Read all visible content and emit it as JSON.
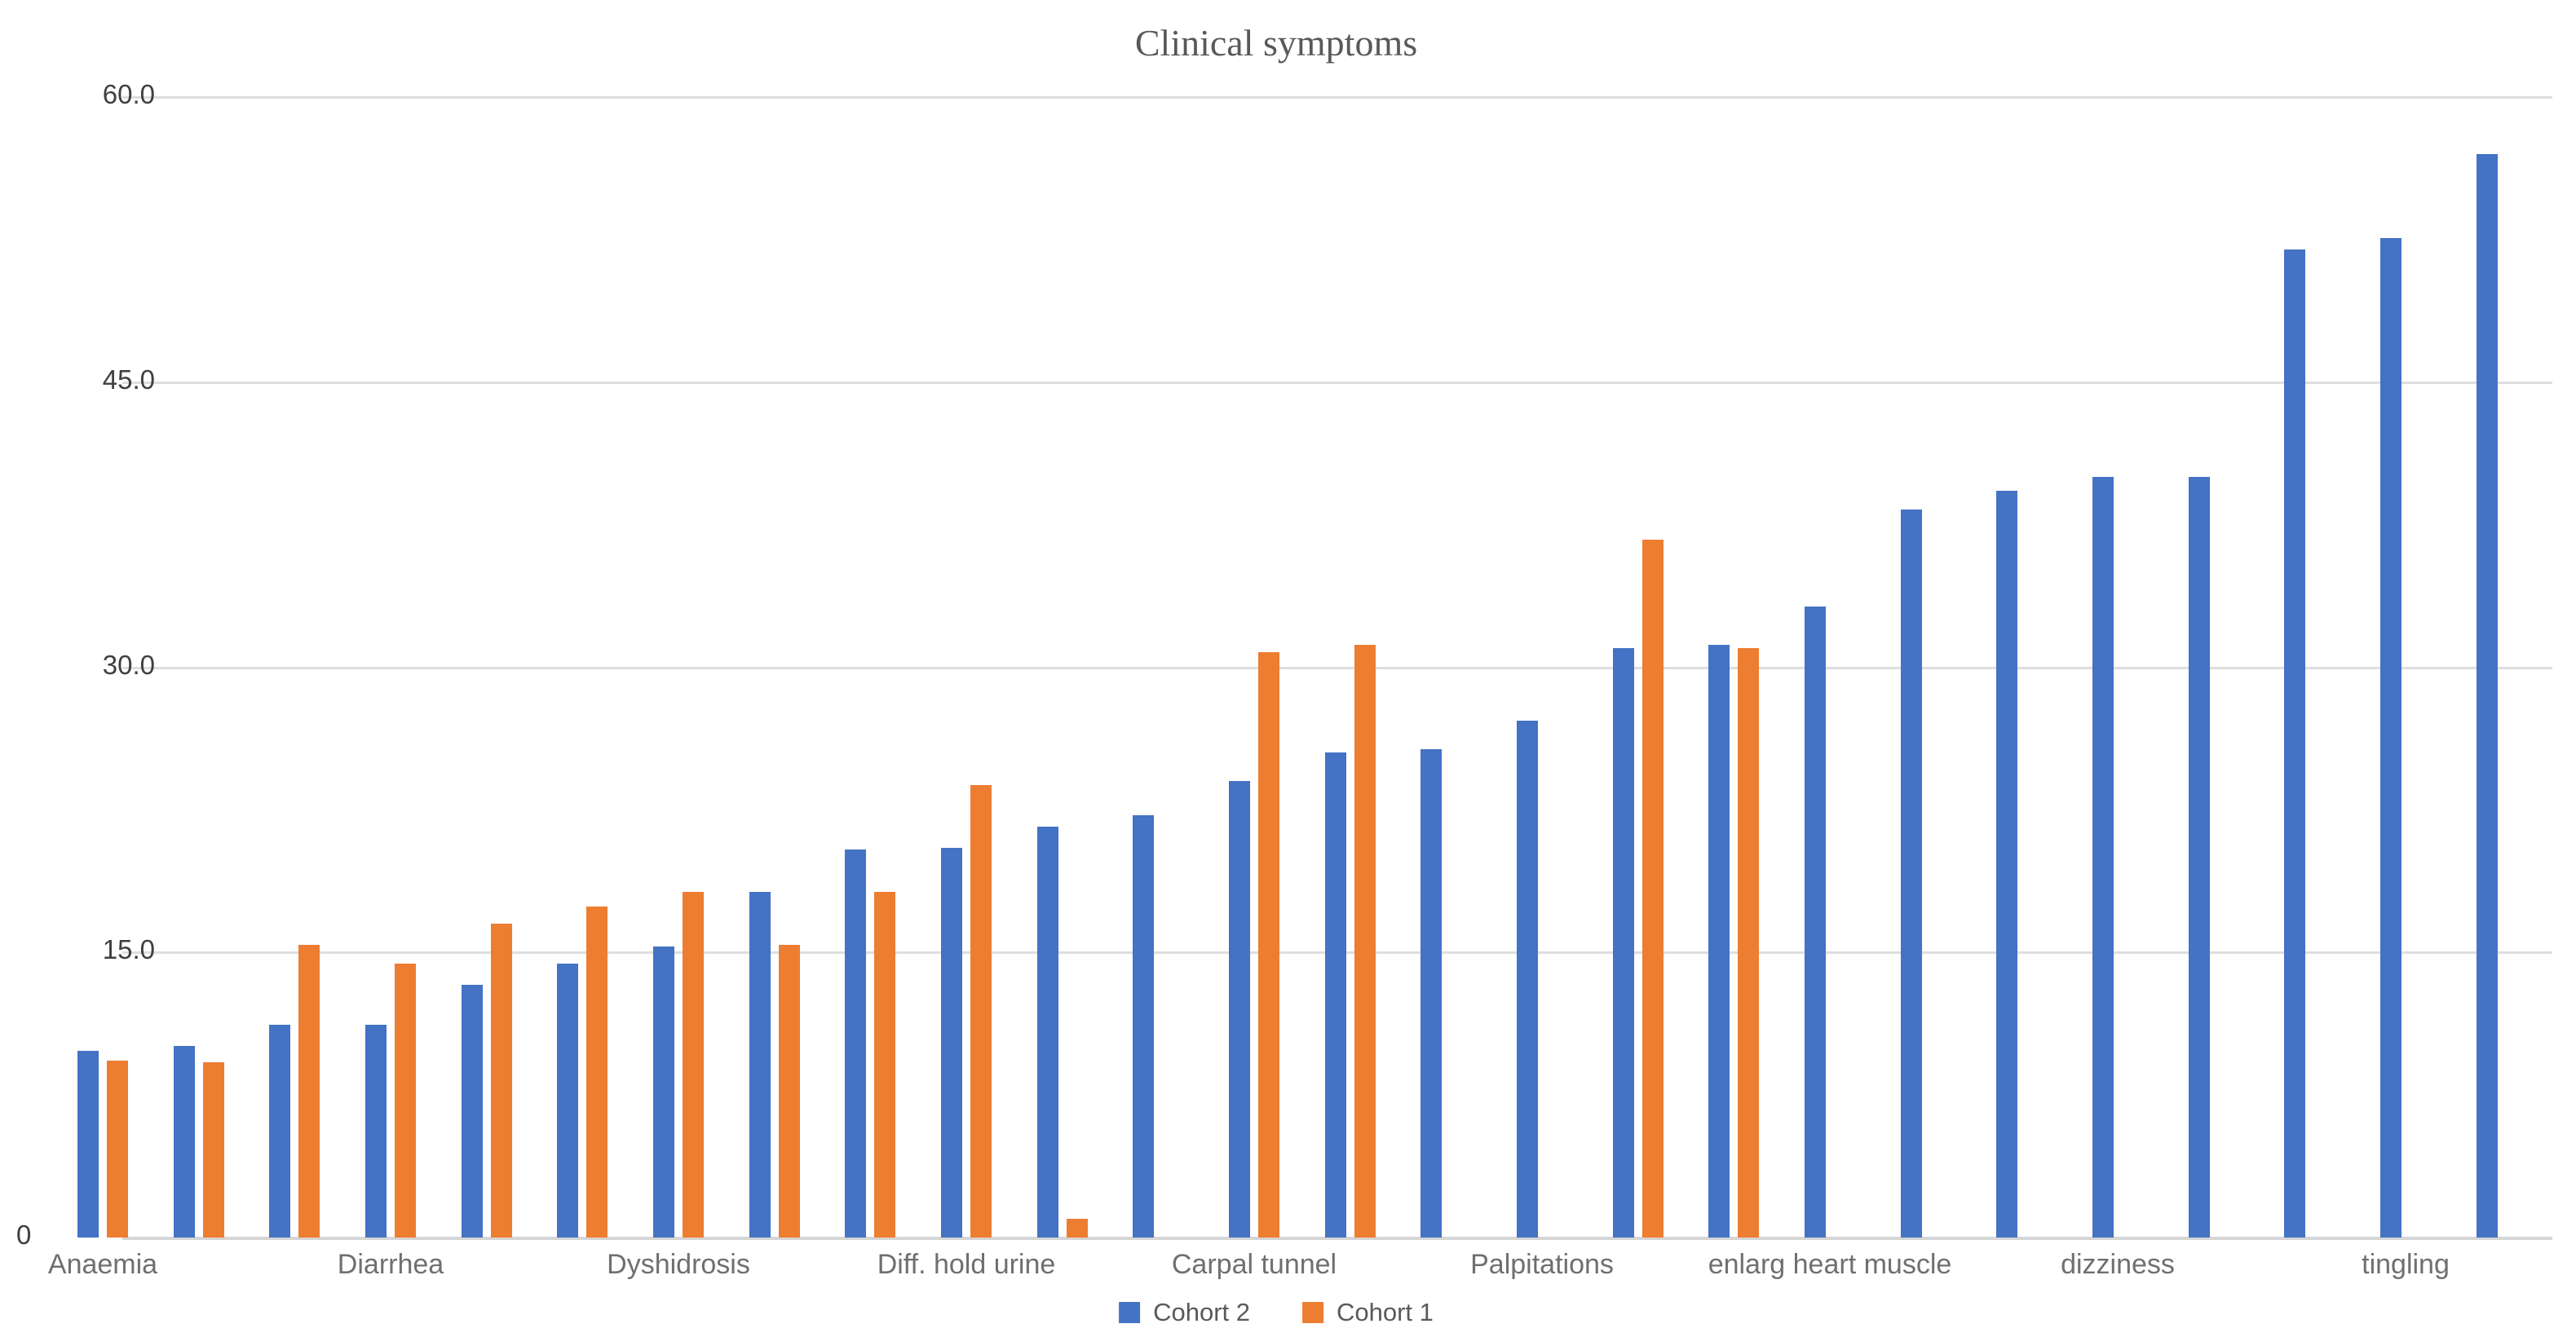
{
  "chart_data": {
    "type": "bar",
    "title": "Clinical symptoms",
    "xlabel": "",
    "ylabel": "",
    "ylim": [
      0,
      60
    ],
    "grid": true,
    "legend_position": "bottom-center",
    "y_axis_ticks": [
      {
        "value": 0,
        "label": "0"
      },
      {
        "value": 15,
        "label": "15.0"
      },
      {
        "value": 30,
        "label": "30.0"
      },
      {
        "value": 45,
        "label": "45.0"
      },
      {
        "value": 60,
        "label": "60.0"
      }
    ],
    "n_pairs": 26,
    "series": [
      {
        "name": "Cohort 2",
        "color": "#4472C4",
        "values": [
          9.8,
          10.1,
          11.2,
          11.2,
          13.3,
          14.4,
          15.3,
          18.2,
          20.4,
          20.5,
          21.6,
          22.2,
          24.0,
          25.5,
          25.7,
          27.2,
          31.0,
          31.2,
          33.2,
          38.3,
          39.3,
          40.0,
          40.0,
          52.0,
          52.6,
          57.0
        ]
      },
      {
        "name": "Cohort 1",
        "color": "#ED7D31",
        "values": [
          9.3,
          9.2,
          15.4,
          14.4,
          16.5,
          17.4,
          18.2,
          15.4,
          18.2,
          23.8,
          1.0,
          null,
          30.8,
          31.2,
          null,
          null,
          36.7,
          31.0,
          null,
          null,
          null,
          null,
          null,
          null,
          null,
          null
        ]
      }
    ],
    "category_labels": [
      {
        "pair_index": 0,
        "label": "Anaemia"
      },
      {
        "pair_index": 3,
        "label": "Diarrhea"
      },
      {
        "pair_index": 6,
        "label": "Dyshidrosis"
      },
      {
        "pair_index": 9,
        "label": "Diff. hold urine"
      },
      {
        "pair_index": 12,
        "label": "Carpal tunnel"
      },
      {
        "pair_index": 15,
        "label": "Palpitations"
      },
      {
        "pair_index": 18,
        "label": "enlarg heart muscle"
      },
      {
        "pair_index": 21,
        "label": "dizziness"
      },
      {
        "pair_index": 24,
        "label": "tingling"
      }
    ]
  },
  "colors": {
    "background": "#ffffff",
    "gridline": "#dedede",
    "axis_line": "#d6d6d6",
    "tick_text": "#3f3f3f",
    "category_text": "#6f6f6f",
    "legend_text": "#595959",
    "title_text": "#595959",
    "cohort2": "#4472C4",
    "cohort1": "#ED7D31"
  }
}
